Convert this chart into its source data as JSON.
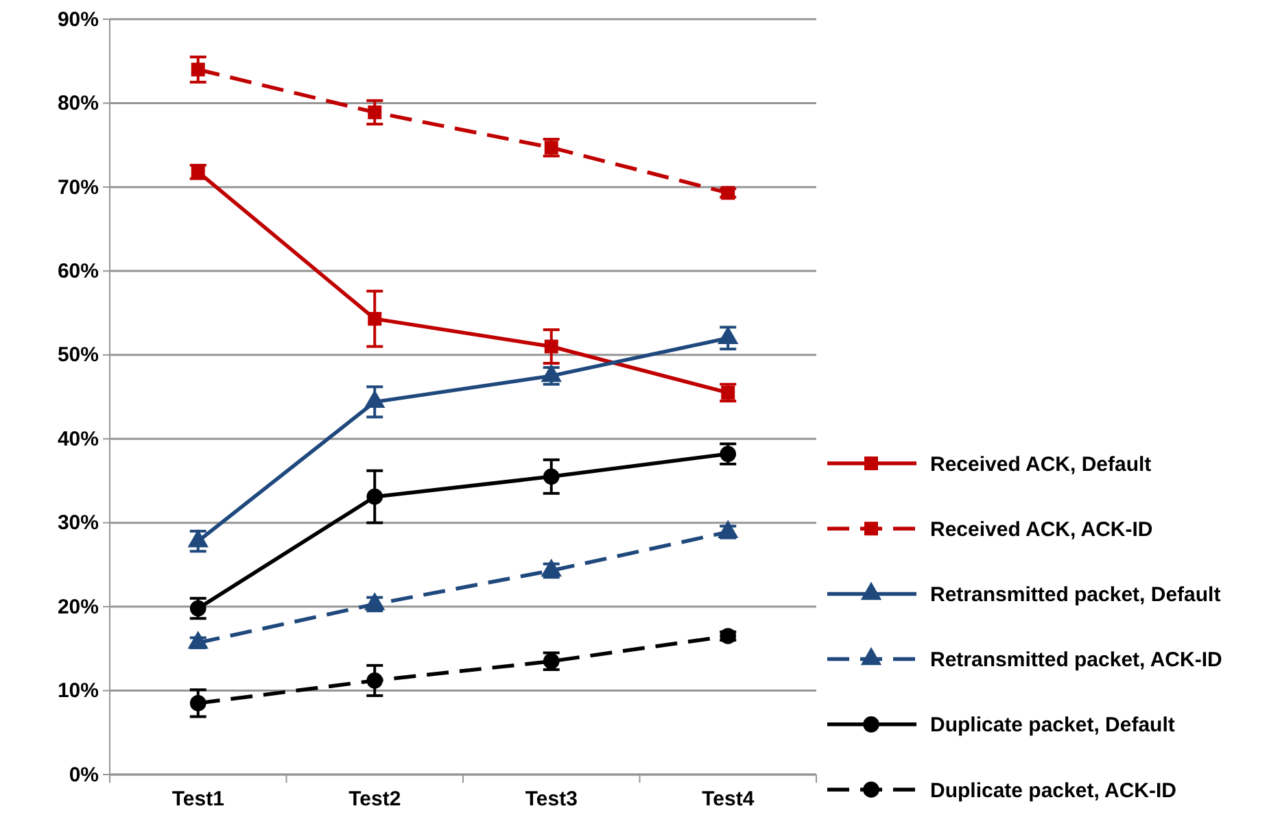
{
  "chart_data": {
    "type": "line",
    "categories": [
      "Test1",
      "Test2",
      "Test3",
      "Test4"
    ],
    "ylim": [
      0,
      90
    ],
    "yticks": [
      {
        "value": 0,
        "label": "0%"
      },
      {
        "value": 10,
        "label": "10%"
      },
      {
        "value": 20,
        "label": "20%"
      },
      {
        "value": 30,
        "label": "30%"
      },
      {
        "value": 40,
        "label": "40%"
      },
      {
        "value": 50,
        "label": "50%"
      },
      {
        "value": 60,
        "label": "60%"
      },
      {
        "value": 70,
        "label": "70%"
      },
      {
        "value": 80,
        "label": "80%"
      },
      {
        "value": 90,
        "label": "90%"
      }
    ],
    "grid": "y",
    "legend": "right",
    "series": [
      {
        "name": "Received ACK, Default",
        "color": "#c00000",
        "marker": "square",
        "line_style": "solid",
        "values": [
          71.8,
          54.3,
          51.0,
          45.5
        ],
        "errors": [
          0.8,
          3.3,
          2.0,
          1.0
        ]
      },
      {
        "name": "Received ACK, ACK-ID",
        "color": "#c00000",
        "marker": "square",
        "line_style": "dashed",
        "values": [
          84.0,
          78.9,
          74.7,
          69.3
        ],
        "errors": [
          1.5,
          1.4,
          1.0,
          0.5
        ]
      },
      {
        "name": "Retransmitted packet, Default",
        "color": "#1f497d",
        "marker": "triangle",
        "line_style": "solid",
        "values": [
          27.8,
          44.4,
          47.5,
          52.0
        ],
        "errors": [
          1.2,
          1.8,
          1.0,
          1.3
        ]
      },
      {
        "name": "Retransmitted packet, ACK-ID",
        "color": "#1f497d",
        "marker": "triangle",
        "line_style": "dashed",
        "values": [
          15.7,
          20.3,
          24.3,
          28.9
        ],
        "errors": [
          0.6,
          0.8,
          0.8,
          0.7
        ]
      },
      {
        "name": "Duplicate packet, Default",
        "color": "#000000",
        "marker": "circle",
        "line_style": "solid",
        "values": [
          19.8,
          33.1,
          35.5,
          38.2
        ],
        "errors": [
          1.2,
          3.1,
          2.0,
          1.2
        ]
      },
      {
        "name": "Duplicate packet, ACK-ID",
        "color": "#000000",
        "marker": "circle",
        "line_style": "dashed",
        "values": [
          8.5,
          11.2,
          13.5,
          16.5
        ],
        "errors": [
          1.6,
          1.8,
          1.0,
          0.5
        ]
      }
    ]
  }
}
